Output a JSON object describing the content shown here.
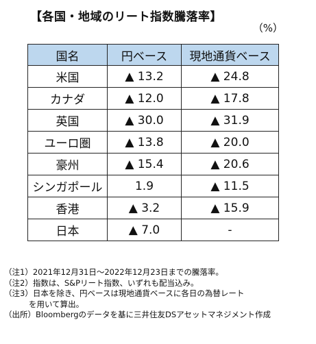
{
  "title": "【各国・地域のリート指数騰落率】",
  "unit": "（%）",
  "table": {
    "headers": [
      "国名",
      "円ベース",
      "現地通貨ベース"
    ],
    "rows": [
      [
        "米国",
        "▲ 13.2",
        "▲ 24.8"
      ],
      [
        "カナダ",
        "▲ 12.0",
        "▲ 17.8"
      ],
      [
        "英国",
        "▲ 30.0",
        "▲ 31.9"
      ],
      [
        "ユーロ圏",
        "▲ 13.8",
        "▲ 20.0"
      ],
      [
        "豪州",
        "▲ 15.4",
        "▲ 20.6"
      ],
      [
        "シンガポール",
        "1.9",
        "▲ 11.5"
      ],
      [
        "香港",
        "▲ 3.2",
        "▲ 15.9"
      ],
      [
        "日本",
        "▲ 7.0",
        "-"
      ]
    ],
    "header_bg": "#bdd7ee",
    "border_color": "#222222"
  },
  "notes": {
    "n1": "（注1）2021年12月31日～2022年12月23日までの騰落率。",
    "n2": "（注2）指数は、S&Pリート指数、いずれも配当込み。",
    "n3a": "（注3）日本を除き、円ベースは現地通貨ベースに各日の為替レート",
    "n3b": "を用いて算出。",
    "source": "（出所）Bloombergのデータを基に三井住友DSアセットマネジメント作成"
  }
}
